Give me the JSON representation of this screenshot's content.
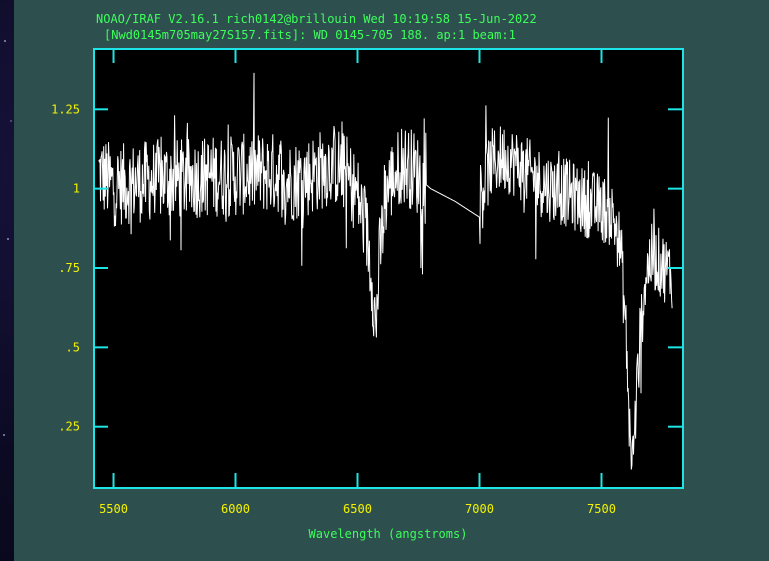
{
  "header": {
    "line1": "NOAO/IRAF V2.16.1 rich0142@brillouin Wed 10:19:58 15-Jun-2022",
    "line2": "[Nwd0145m705may27S157.fits]: WD 0145-705 188. ap:1 beam:1"
  },
  "colors": {
    "panel": "#2d504f",
    "plot_bg": "#000000",
    "frame": "#1ee5e5",
    "tick_labels": "#f4f200",
    "text": "#3cff5a",
    "trace": "#ffffff"
  },
  "chart_data": {
    "type": "line",
    "title": "",
    "xlabel": "Wavelength (angstroms)",
    "ylabel": "",
    "xlim": [
      5420,
      7830
    ],
    "ylim": [
      0.06,
      1.44
    ],
    "x_ticks": [
      5500,
      6000,
      6500,
      7000,
      7500
    ],
    "x_tick_labels": [
      "5500",
      "6000",
      "6500",
      "7000",
      "7500"
    ],
    "y_ticks": [
      0.25,
      0.5,
      0.75,
      1.0,
      1.25
    ],
    "y_tick_labels": [
      ".25",
      ".5",
      ".75",
      "1",
      "1.25"
    ],
    "grid": false,
    "series": [
      {
        "x": [
          5440,
          5500,
          5600,
          5700,
          5800,
          5900,
          6000,
          6100,
          6190,
          6200,
          6210,
          6300,
          6400,
          6450,
          6500,
          6540,
          6560,
          6575,
          6590,
          6620,
          6680,
          6730,
          6770,
          6800,
          6900,
          6960,
          7000,
          7010,
          7050,
          7100,
          7150,
          7200,
          7250,
          7300,
          7350,
          7400,
          7450,
          7500,
          7540,
          7560,
          7580,
          7600,
          7610,
          7620,
          7630,
          7640,
          7660,
          7680,
          7700,
          7720,
          7760,
          7790
        ],
        "y": [
          1.05,
          1.01,
          1.02,
          1.03,
          1.03,
          1.04,
          1.04,
          1.05,
          1.05,
          0.95,
          1.02,
          1.04,
          1.08,
          1.05,
          0.98,
          0.85,
          0.72,
          0.55,
          0.78,
          1.0,
          1.08,
          1.06,
          1.02,
          1.0,
          0.96,
          0.93,
          0.91,
          1.0,
          1.08,
          1.1,
          1.08,
          1.05,
          1.02,
          1.0,
          0.99,
          0.97,
          0.95,
          0.94,
          0.92,
          0.88,
          0.8,
          0.55,
          0.35,
          0.18,
          0.15,
          0.3,
          0.55,
          0.72,
          0.78,
          0.78,
          0.75,
          0.73
        ]
      }
    ]
  }
}
